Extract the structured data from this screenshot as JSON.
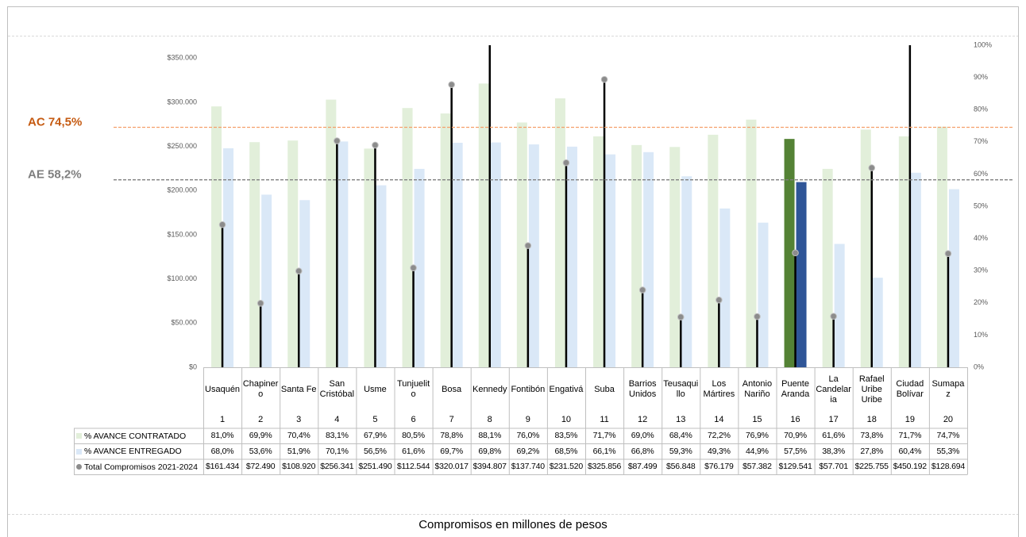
{
  "chart_data": {
    "type": "bar",
    "xlabel": "Compromisos en millones de pesos",
    "categories": [
      "Usaquén",
      "Chapinero",
      "Santa Fe",
      "San Cristóbal",
      "Usme",
      "Tunjuelito",
      "Bosa",
      "Kennedy",
      "Fontibón",
      "Engativá",
      "Suba",
      "Barrios Unidos",
      "Teusaquillo",
      "Los Mártires",
      "Antonio Nariño",
      "Puente Aranda",
      "La Candelaria",
      "Rafael Uribe Uribe",
      "Ciudad Bolívar",
      "Sumapaz"
    ],
    "category_numbers": [
      1,
      2,
      3,
      4,
      5,
      6,
      7,
      8,
      9,
      10,
      11,
      12,
      13,
      14,
      15,
      16,
      17,
      18,
      19,
      20
    ],
    "series": [
      {
        "name": "% AVANCE CONTRATADO",
        "type": "bar",
        "axis": "y2",
        "color": "#e2efda",
        "highlight_index": 15,
        "highlight_color": "#548235",
        "values": [
          81.0,
          69.9,
          70.4,
          83.1,
          67.9,
          80.5,
          78.8,
          88.1,
          76.0,
          83.5,
          71.7,
          69.0,
          68.4,
          72.2,
          76.9,
          70.9,
          61.6,
          73.8,
          71.7,
          74.7
        ],
        "value_labels": [
          "81,0%",
          "69,9%",
          "70,4%",
          "83,1%",
          "67,9%",
          "80,5%",
          "78,8%",
          "88,1%",
          "76,0%",
          "83,5%",
          "71,7%",
          "69,0%",
          "68,4%",
          "72,2%",
          "76,9%",
          "70,9%",
          "61,6%",
          "73,8%",
          "71,7%",
          "74,7%"
        ]
      },
      {
        "name": "% AVANCE ENTREGADO",
        "type": "bar",
        "axis": "y2",
        "color": "#dae8f7",
        "highlight_index": 15,
        "highlight_color": "#2f5597",
        "values": [
          68.0,
          53.6,
          51.9,
          70.1,
          56.5,
          61.6,
          69.7,
          69.8,
          69.2,
          68.5,
          66.1,
          66.8,
          59.3,
          49.3,
          44.9,
          57.5,
          38.3,
          27.8,
          60.4,
          55.3
        ],
        "value_labels": [
          "68,0%",
          "53,6%",
          "51,9%",
          "70,1%",
          "56,5%",
          "61,6%",
          "69,7%",
          "69,8%",
          "69,2%",
          "68,5%",
          "66,1%",
          "66,8%",
          "59,3%",
          "49,3%",
          "44,9%",
          "57,5%",
          "38,3%",
          "27,8%",
          "60,4%",
          "55,3%"
        ]
      },
      {
        "name": "Total Compromisos 2021-2024",
        "type": "stem",
        "color": "#000000",
        "marker_color": "#8c8c8c",
        "values": [
          161434,
          72490,
          108920,
          256341,
          251490,
          112544,
          320017,
          394807,
          137740,
          231520,
          325856,
          87499,
          56848,
          76179,
          57382,
          129541,
          57701,
          225755,
          450192,
          128694
        ],
        "value_labels": [
          "$161.434",
          "$72.490",
          "$108.920",
          "$256.341",
          "$251.490",
          "$112.544",
          "$320.017",
          "$394.807",
          "$137.740",
          "$231.520",
          "$325.856",
          "$87.499",
          "$56.848",
          "$76.179",
          "$57.382",
          "$129.541",
          "$57.701",
          "$225.755",
          "$450.192",
          "$128.694"
        ]
      }
    ],
    "ylim": [
      0,
      364600
    ],
    "yticks": [
      {
        "value": 0,
        "label": "$0"
      },
      {
        "value": 50000,
        "label": "$50.000"
      },
      {
        "value": 100000,
        "label": "$100.000"
      },
      {
        "value": 150000,
        "label": "$150.000"
      },
      {
        "value": 200000,
        "label": "$200.000"
      },
      {
        "value": 250000,
        "label": "$250.000"
      },
      {
        "value": 300000,
        "label": "$300.000"
      },
      {
        "value": 350000,
        "label": "$350.000"
      }
    ],
    "y2lim": [
      0,
      100
    ],
    "y2ticks": [
      {
        "value": 0,
        "label": "0%"
      },
      {
        "value": 10,
        "label": "10%"
      },
      {
        "value": 20,
        "label": "20%"
      },
      {
        "value": 30,
        "label": "30%"
      },
      {
        "value": 40,
        "label": "40%"
      },
      {
        "value": 50,
        "label": "50%"
      },
      {
        "value": 60,
        "label": "60%"
      },
      {
        "value": 70,
        "label": "70%"
      },
      {
        "value": 80,
        "label": "80%"
      },
      {
        "value": 90,
        "label": "90%"
      },
      {
        "value": 100,
        "label": "100%"
      }
    ],
    "reference_lines": [
      {
        "label": "AC 74,5%",
        "value": 74.5,
        "axis": "y2",
        "color": "#f4a06a",
        "label_color": "#c55a11"
      },
      {
        "label": "AE 58,2%",
        "value": 58.2,
        "axis": "y2",
        "color": "#7f7f7f",
        "label_color": "#7f7f7f"
      }
    ]
  }
}
